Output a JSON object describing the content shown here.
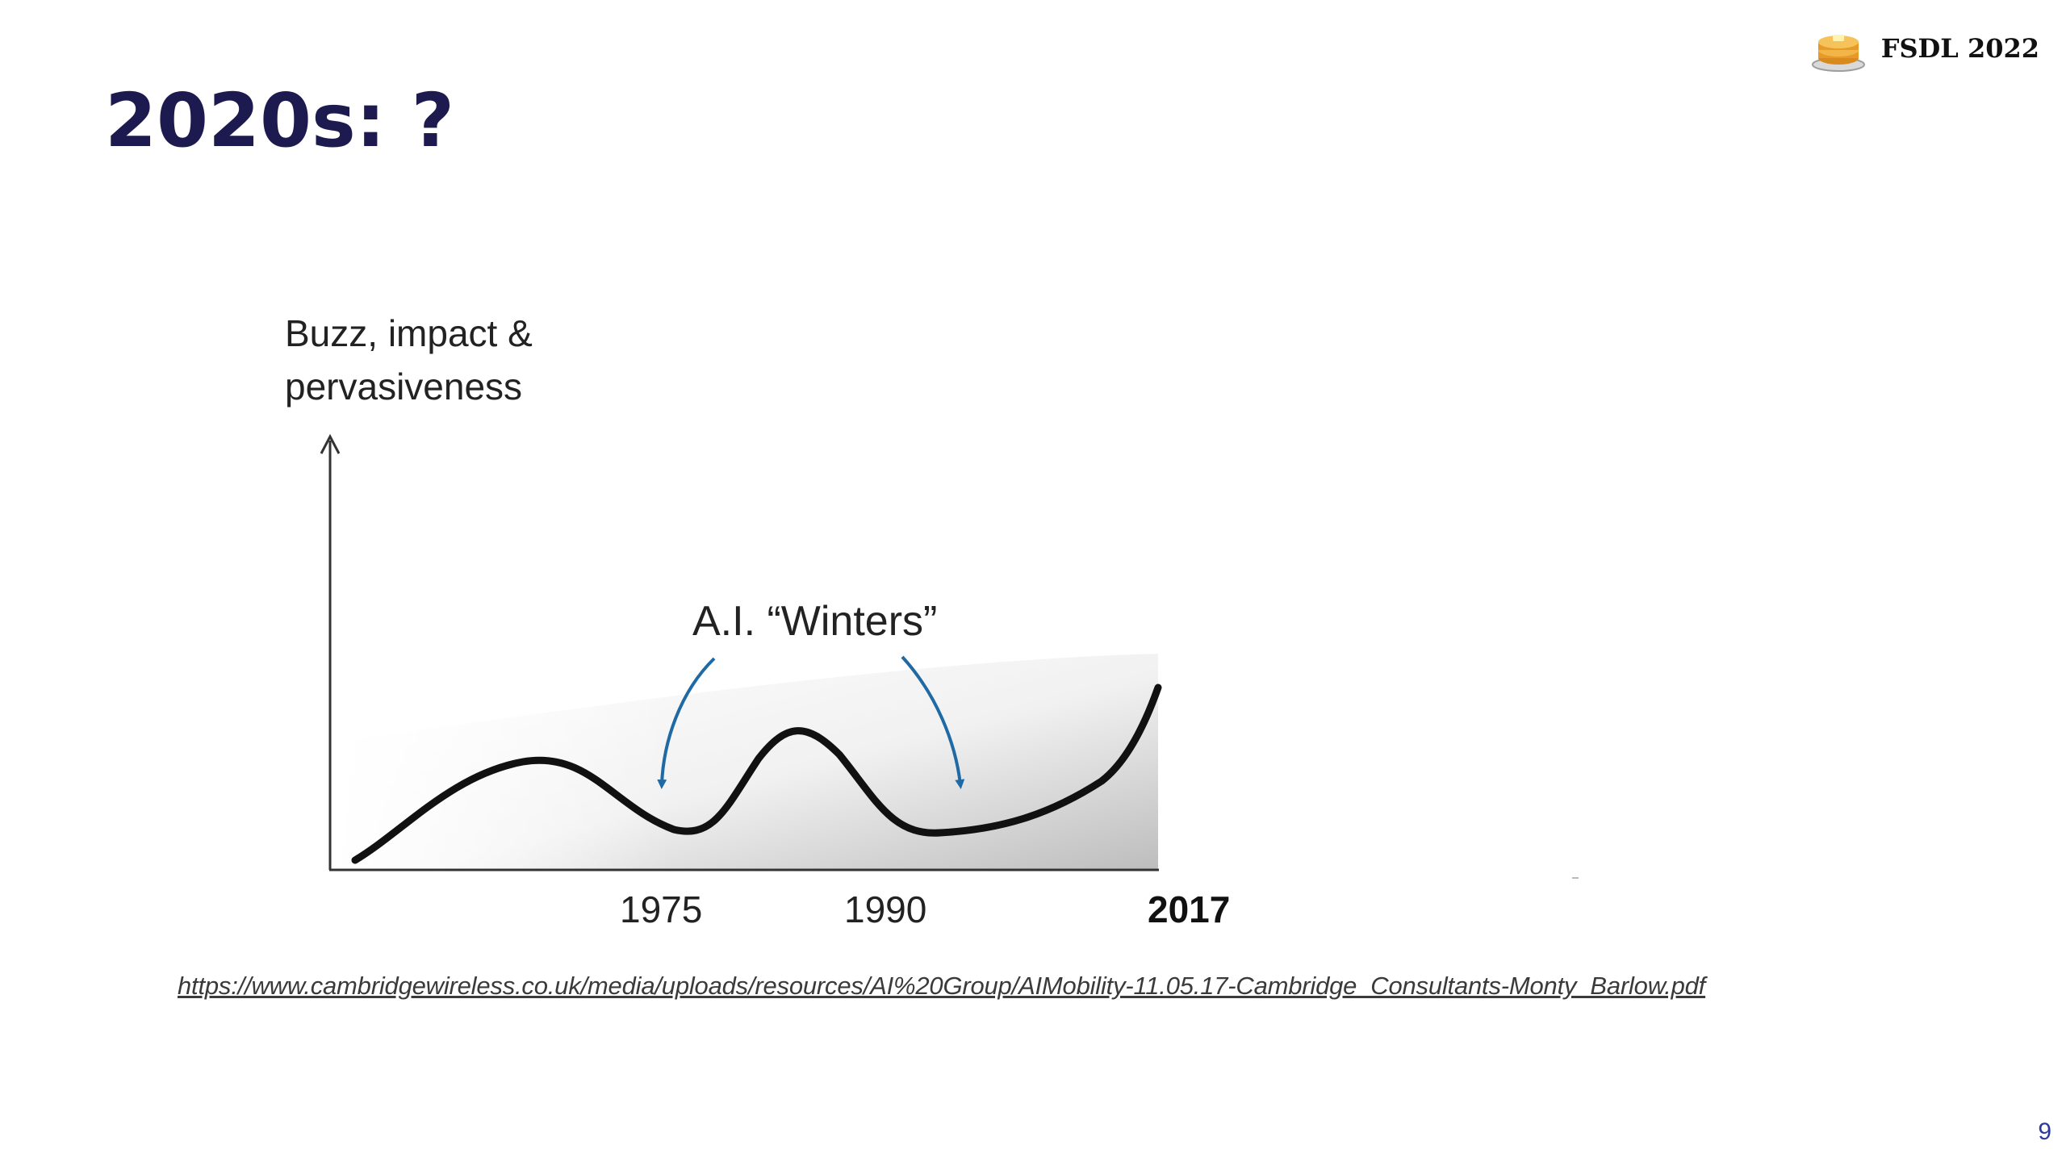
{
  "header": {
    "brand_label": "FSDL 2022",
    "brand_icon": "pancakes-icon"
  },
  "title": "2020s: ?",
  "figure": {
    "ylabel_line1": "Buzz, impact &",
    "ylabel_line2": "pervasiveness",
    "annotation": "A.I. “Winters”",
    "ticks": [
      "1975",
      "1990",
      "2017"
    ],
    "curve_color": "#111111",
    "arrow_color": "#1f6aa5"
  },
  "source_url": "https://www.cambridgewireless.co.uk/media/uploads/resources/AI%20Group/AIMobility-11.05.17-Cambridge_Consultants-Monty_Barlow.pdf",
  "page_number": "9",
  "colors": {
    "title": "#1c1a4f",
    "page_number": "#2c3a9a"
  }
}
